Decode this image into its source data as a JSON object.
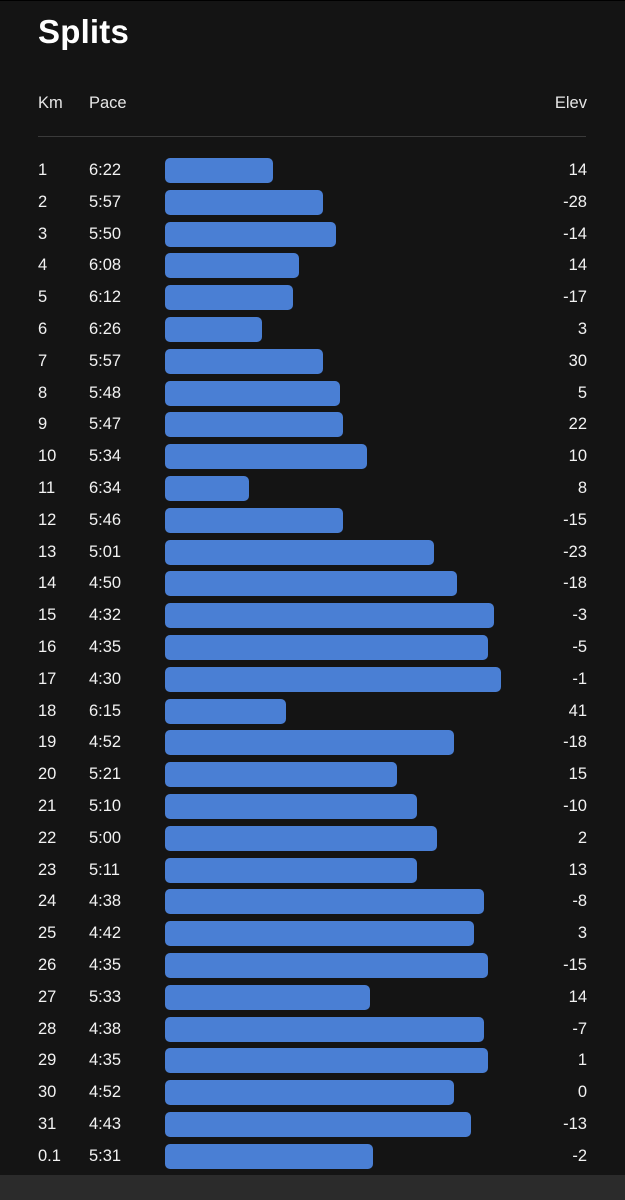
{
  "title": "Splits",
  "columns": {
    "km": "Km",
    "pace": "Pace",
    "elev": "Elev"
  },
  "colors": {
    "background": "#141414",
    "bar": "#4a7fd4",
    "divider": "#3a3a3a"
  },
  "splits": [
    {
      "km": "1",
      "pace": "6:22",
      "elev": "14",
      "bar_fraction": 0.32
    },
    {
      "km": "2",
      "pace": "5:57",
      "elev": "-28",
      "bar_fraction": 0.47
    },
    {
      "km": "3",
      "pace": "5:50",
      "elev": "-14",
      "bar_fraction": 0.51
    },
    {
      "km": "4",
      "pace": "6:08",
      "elev": "14",
      "bar_fraction": 0.4
    },
    {
      "km": "5",
      "pace": "6:12",
      "elev": "-17",
      "bar_fraction": 0.38
    },
    {
      "km": "6",
      "pace": "6:26",
      "elev": "3",
      "bar_fraction": 0.29
    },
    {
      "km": "7",
      "pace": "5:57",
      "elev": "30",
      "bar_fraction": 0.47
    },
    {
      "km": "8",
      "pace": "5:48",
      "elev": "5",
      "bar_fraction": 0.52
    },
    {
      "km": "9",
      "pace": "5:47",
      "elev": "22",
      "bar_fraction": 0.53
    },
    {
      "km": "10",
      "pace": "5:34",
      "elev": "10",
      "bar_fraction": 0.6
    },
    {
      "km": "11",
      "pace": "6:34",
      "elev": "8",
      "bar_fraction": 0.25
    },
    {
      "km": "12",
      "pace": "5:46",
      "elev": "-15",
      "bar_fraction": 0.53
    },
    {
      "km": "13",
      "pace": "5:01",
      "elev": "-23",
      "bar_fraction": 0.8
    },
    {
      "km": "14",
      "pace": "4:50",
      "elev": "-18",
      "bar_fraction": 0.87
    },
    {
      "km": "15",
      "pace": "4:32",
      "elev": "-3",
      "bar_fraction": 0.98
    },
    {
      "km": "16",
      "pace": "4:35",
      "elev": "-5",
      "bar_fraction": 0.96
    },
    {
      "km": "17",
      "pace": "4:30",
      "elev": "-1",
      "bar_fraction": 1.0
    },
    {
      "km": "18",
      "pace": "6:15",
      "elev": "41",
      "bar_fraction": 0.36
    },
    {
      "km": "19",
      "pace": "4:52",
      "elev": "-18",
      "bar_fraction": 0.86
    },
    {
      "km": "20",
      "pace": "5:21",
      "elev": "15",
      "bar_fraction": 0.69
    },
    {
      "km": "21",
      "pace": "5:10",
      "elev": "-10",
      "bar_fraction": 0.75
    },
    {
      "km": "22",
      "pace": "5:00",
      "elev": "2",
      "bar_fraction": 0.81
    },
    {
      "km": "23",
      "pace": "5:11",
      "elev": "13",
      "bar_fraction": 0.75
    },
    {
      "km": "24",
      "pace": "4:38",
      "elev": "-8",
      "bar_fraction": 0.95
    },
    {
      "km": "25",
      "pace": "4:42",
      "elev": "3",
      "bar_fraction": 0.92
    },
    {
      "km": "26",
      "pace": "4:35",
      "elev": "-15",
      "bar_fraction": 0.96
    },
    {
      "km": "27",
      "pace": "5:33",
      "elev": "14",
      "bar_fraction": 0.61
    },
    {
      "km": "28",
      "pace": "4:38",
      "elev": "-7",
      "bar_fraction": 0.95
    },
    {
      "km": "29",
      "pace": "4:35",
      "elev": "1",
      "bar_fraction": 0.96
    },
    {
      "km": "30",
      "pace": "4:52",
      "elev": "0",
      "bar_fraction": 0.86
    },
    {
      "km": "31",
      "pace": "4:43",
      "elev": "-13",
      "bar_fraction": 0.91
    },
    {
      "km": "0.1",
      "pace": "5:31",
      "elev": "-2",
      "bar_fraction": 0.62
    }
  ]
}
